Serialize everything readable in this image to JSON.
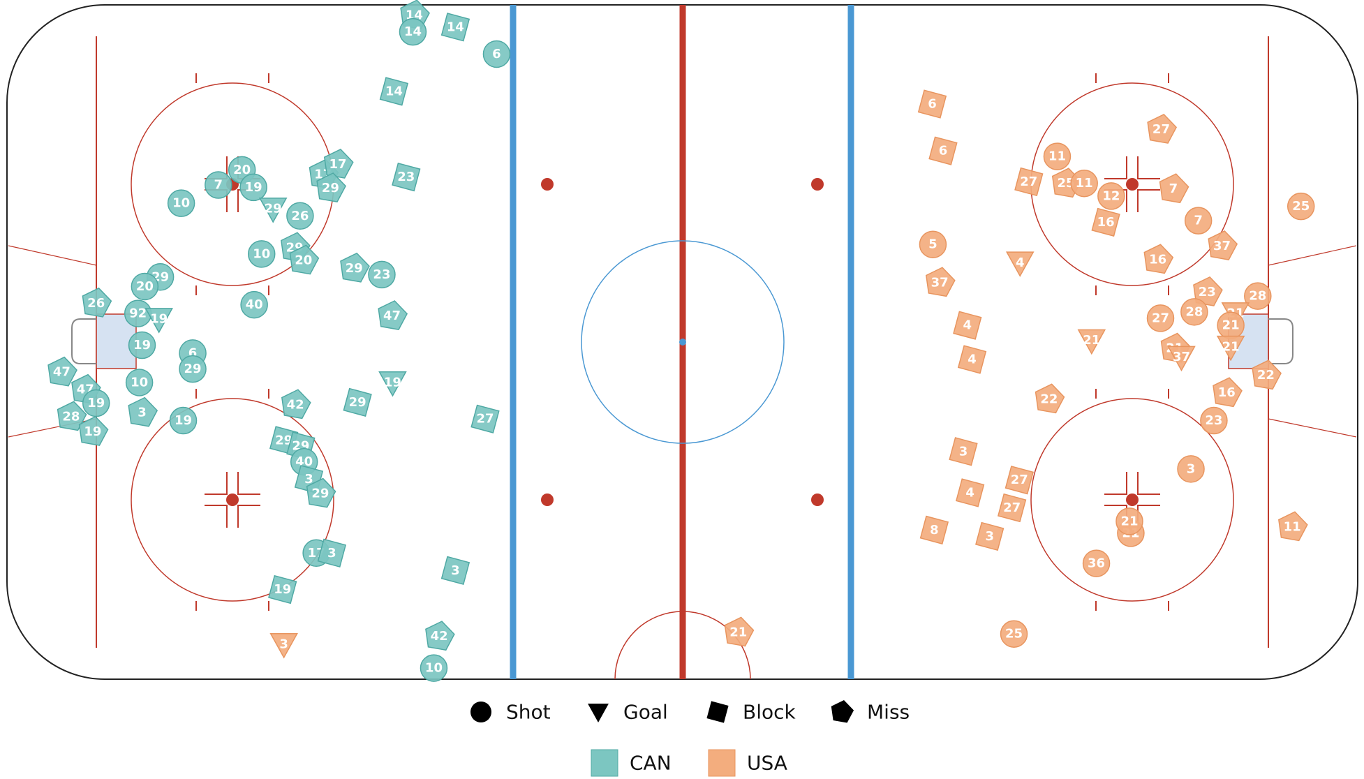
{
  "chart_data": {
    "type": "scatter",
    "xlim": [
      -100,
      100
    ],
    "ylim": [
      -42.5,
      42.5
    ],
    "markers": [
      {
        "name": "Shot",
        "shape": "circle"
      },
      {
        "name": "Goal",
        "shape": "triangle-down"
      },
      {
        "name": "Block",
        "shape": "square"
      },
      {
        "name": "Miss",
        "shape": "pentagon"
      }
    ],
    "series": [
      {
        "name": "CAN",
        "color": "#7cc6c1",
        "stroke": "#4fa9a4",
        "x": [
          -39.7,
          -39.9,
          -33.6,
          -27.5,
          -42.7,
          -40.9,
          -53.2,
          -51.0,
          -52.1,
          -65.2,
          -68.7,
          -63.5,
          -74.2,
          -60.6,
          -56.6,
          -62.3,
          -57.4,
          -56.1,
          -48.6,
          -44.5,
          -77.3,
          -79.6,
          -86.8,
          -63.4,
          -43.0,
          -80.6,
          -77.5,
          -80.0,
          -72.5,
          -72.5,
          -80.4,
          -91.9,
          -88.4,
          -86.8,
          -42.9,
          -57.3,
          -48.1,
          -80.0,
          -90.5,
          -87.3,
          -73.9,
          -29.2,
          -59.0,
          -56.5,
          -56.0,
          -55.3,
          -53.6,
          -54.2,
          -51.9,
          -59.2,
          -33.6,
          -36.0,
          -36.8
        ],
        "y": [
          41.2,
          39.1,
          39.7,
          36.3,
          31.6,
          20.8,
          21.1,
          22.4,
          19.4,
          21.7,
          19.8,
          19.5,
          17.5,
          16.8,
          15.9,
          11.1,
          11.9,
          10.3,
          9.3,
          8.5,
          8.2,
          7.0,
          4.9,
          4.7,
          3.3,
          3.6,
          2.9,
          -0.4,
          -1.4,
          -3.4,
          -5.1,
          -3.8,
          -6.0,
          -7.7,
          -5.1,
          -7.9,
          -7.6,
          -8.9,
          -9.4,
          -11.3,
          -9.9,
          -9.7,
          -12.4,
          -13.1,
          -15.1,
          -17.3,
          -19.1,
          -26.6,
          -26.6,
          -31.2,
          -28.8,
          -37.1,
          -41.1
        ],
        "kinds": [
          "Miss",
          "Shot",
          "Block",
          "Shot",
          "Block",
          "Block",
          "Miss",
          "Miss",
          "Miss",
          "Shot",
          "Shot",
          "Shot",
          "Shot",
          "Goal",
          "Shot",
          "Shot",
          "Miss",
          "Miss",
          "Miss",
          "Shot",
          "Shot",
          "Shot",
          "Miss",
          "Shot",
          "Miss",
          "Shot",
          "Goal",
          "Shot",
          "Shot",
          "Shot",
          "Shot",
          "Miss",
          "Miss",
          "Shot",
          "Goal",
          "Miss",
          "Block",
          "Miss",
          "Miss",
          "Miss",
          "Shot",
          "Block",
          "Block",
          "Block",
          "Shot",
          "Block",
          "Miss",
          "Shot",
          "Block",
          "Block",
          "Block",
          "Miss",
          "Shot"
        ],
        "labels": [
          "14",
          "14",
          "14",
          "6",
          "14",
          "23",
          "17",
          "17",
          "29",
          "20",
          "7",
          "19",
          "10",
          "29",
          "26",
          "10",
          "29",
          "20",
          "29",
          "23",
          "29",
          "20",
          "26",
          "40",
          "47",
          "92",
          "19",
          "19",
          "6",
          "29",
          "10",
          "47",
          "47",
          "19",
          "19",
          "42",
          "29",
          "3",
          "28",
          "19",
          "19",
          "27",
          "29",
          "29",
          "40",
          "3",
          "29",
          "17",
          "3",
          "19",
          "3",
          "42",
          "10"
        ]
      },
      {
        "name": "USA",
        "color": "#f3ad7e",
        "stroke": "#e8955f",
        "x": [
          37.0,
          38.6,
          70.9,
          55.5,
          51.3,
          56.8,
          59.5,
          63.5,
          72.7,
          62.7,
          76.4,
          91.6,
          37.1,
          50.0,
          70.4,
          79.9,
          38.1,
          77.7,
          85.2,
          75.8,
          70.8,
          81.9,
          81.2,
          42.2,
          60.6,
          72.9,
          73.9,
          81.2,
          42.9,
          86.4,
          80.6,
          54.3,
          78.7,
          41.6,
          75.3,
          49.9,
          42.6,
          48.8,
          37.3,
          45.5,
          66.4,
          66.2,
          61.3,
          90.3,
          49.1,
          8.3,
          -59.0
        ],
        "y": [
          30.0,
          24.1,
          26.8,
          23.4,
          20.2,
          20.0,
          20.0,
          18.4,
          19.3,
          15.1,
          15.3,
          17.1,
          12.3,
          10.0,
          10.4,
          12.1,
          7.5,
          6.3,
          5.8,
          3.8,
          3.0,
          3.6,
          2.1,
          2.1,
          0.2,
          -0.8,
          -1.9,
          -0.6,
          -2.2,
          -4.2,
          -6.4,
          -7.2,
          -9.9,
          -13.8,
          -16.0,
          -17.4,
          -19.0,
          -20.9,
          -23.7,
          -24.5,
          -24.1,
          -22.6,
          -27.9,
          -23.3,
          -36.8,
          -36.6,
          -38.1
        ],
        "kinds": [
          "Block",
          "Block",
          "Miss",
          "Shot",
          "Block",
          "Miss",
          "Shot",
          "Shot",
          "Miss",
          "Block",
          "Shot",
          "Shot",
          "Shot",
          "Goal",
          "Miss",
          "Miss",
          "Miss",
          "Miss",
          "Shot",
          "Shot",
          "Shot",
          "Goal",
          "Shot",
          "Block",
          "Goal",
          "Miss",
          "Goal",
          "Goal",
          "Block",
          "Miss",
          "Miss",
          "Miss",
          "Shot",
          "Block",
          "Shot",
          "Block",
          "Block",
          "Block",
          "Block",
          "Block",
          "Shot",
          "Shot",
          "Shot",
          "Miss",
          "Shot",
          "Miss",
          "Goal"
        ],
        "labels": [
          "6",
          "6",
          "27",
          "11",
          "27",
          "25",
          "11",
          "12",
          "7",
          "16",
          "7",
          "25",
          "5",
          "4",
          "16",
          "37",
          "37",
          "23",
          "28",
          "28",
          "27",
          "21",
          "21",
          "4",
          "21",
          "21",
          "37",
          "21",
          "4",
          "22",
          "16",
          "22",
          "23",
          "3",
          "3",
          "27",
          "4",
          "27",
          "8",
          "3",
          "21",
          "21",
          "36",
          "11",
          "25",
          "21",
          "3"
        ]
      }
    ]
  }
}
